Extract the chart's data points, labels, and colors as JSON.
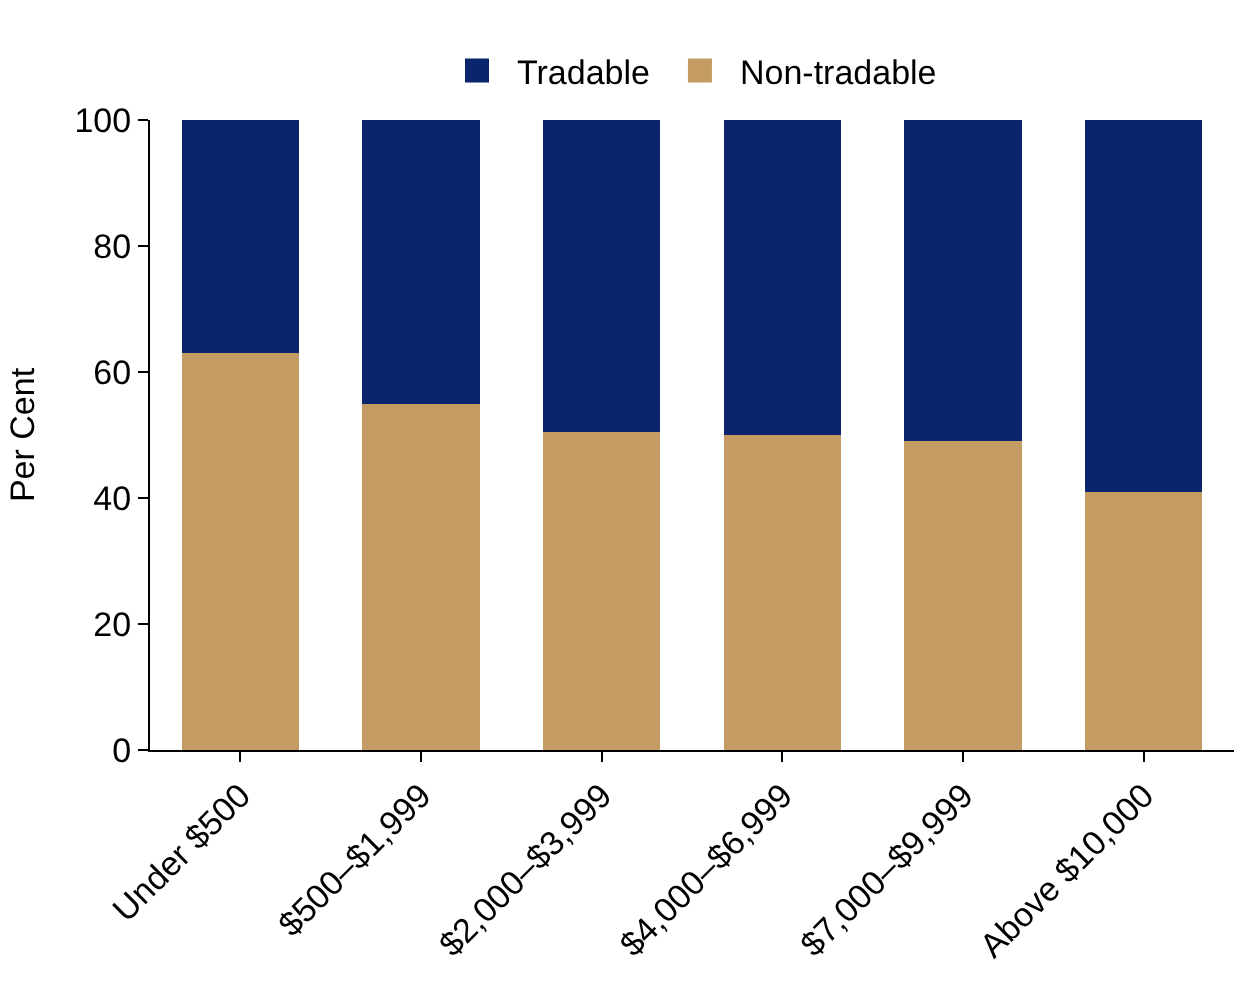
{
  "chart_data": {
    "type": "bar",
    "stacked": true,
    "ylabel": "Per Cent",
    "categories": [
      "Under $500",
      "$500–$1,999",
      "$2,000–$3,999",
      "$4,000–$6,999",
      "$7,000–$9,999",
      "Above $10,000"
    ],
    "series": [
      {
        "name": "Non-tradable",
        "color": "#c39b63",
        "values": [
          63,
          55,
          50.5,
          50,
          49,
          41
        ]
      },
      {
        "name": "Tradable",
        "color": "#0b246e",
        "values": [
          37,
          45,
          49.5,
          50,
          51,
          59
        ]
      }
    ],
    "ylim": [
      0,
      100
    ],
    "yticks": [
      0,
      20,
      40,
      60,
      80,
      100
    ],
    "legend": "top"
  }
}
